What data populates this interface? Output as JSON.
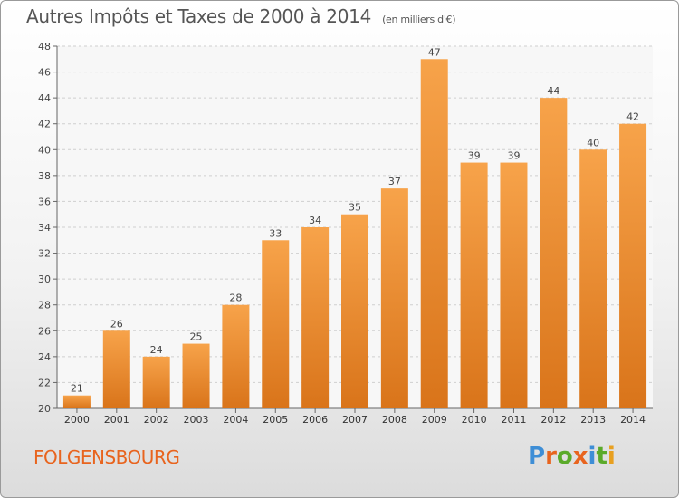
{
  "header": {
    "title": "Autres Impôts et Taxes de 2000 à 2014",
    "unit_note": "(en milliers d'€)"
  },
  "footer": {
    "commune": "FOLGENSBOURG",
    "logo_text": "Proxiti"
  },
  "colors": {
    "bar_light": "#f7a34a",
    "bar_dark": "#d9741a",
    "commune_text": "#e8641e",
    "logo_letters": [
      "#3e8ed6",
      "#e8641e",
      "#5aaa2a",
      "#e8641e",
      "#3e8ed6",
      "#5aaa2a",
      "#e8a020"
    ]
  },
  "chart_data": {
    "type": "bar",
    "title": "Autres Impôts et Taxes de 2000 à 2014",
    "subtitle": "(en milliers d'€)",
    "xlabel": "",
    "ylabel": "",
    "categories": [
      "2000",
      "2001",
      "2002",
      "2003",
      "2004",
      "2005",
      "2006",
      "2007",
      "2008",
      "2009",
      "2010",
      "2011",
      "2012",
      "2013",
      "2014"
    ],
    "values": [
      21,
      26,
      24,
      25,
      28,
      33,
      34,
      35,
      37,
      47,
      39,
      39,
      44,
      40,
      42
    ],
    "ylim": [
      20,
      48
    ],
    "yticks": [
      20,
      22,
      24,
      26,
      28,
      30,
      32,
      34,
      36,
      38,
      40,
      42,
      44,
      46,
      48
    ],
    "grid": true,
    "data_labels": true
  }
}
